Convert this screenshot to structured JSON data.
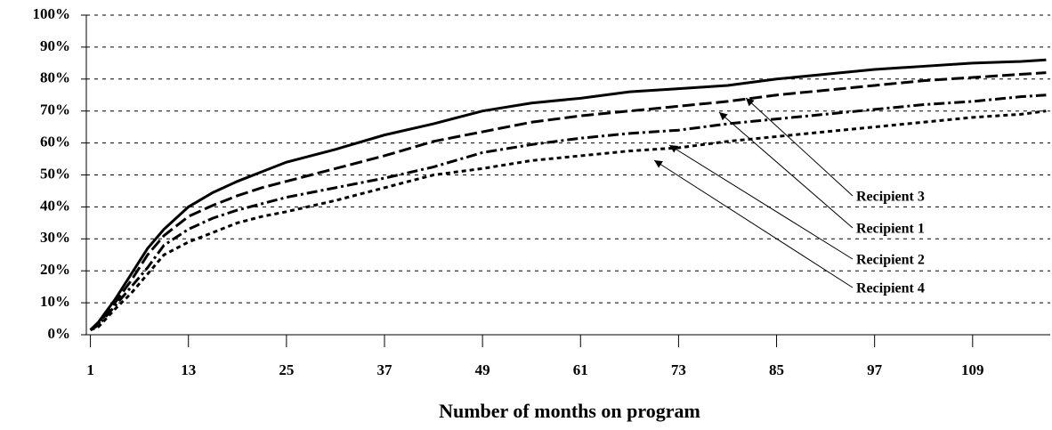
{
  "chart_data": {
    "type": "line",
    "x_label": "Number of months on program",
    "x": [
      1,
      2,
      4,
      6,
      8,
      10,
      13,
      16,
      19,
      22,
      25,
      31,
      37,
      43,
      49,
      55,
      61,
      67,
      73,
      79,
      85,
      91,
      97,
      103,
      109,
      115,
      118
    ],
    "series": [
      {
        "name": "Recipient 3",
        "color": "#000000",
        "style": "solid",
        "values": [
          1.5,
          4,
          11,
          19,
          27,
          33,
          40,
          44.5,
          48,
          51,
          54,
          58,
          62.5,
          66,
          70,
          72.5,
          74,
          76,
          77,
          78,
          80,
          81.5,
          83,
          84,
          85,
          85.5,
          86
        ]
      },
      {
        "name": "Recipient 1",
        "color": "#000000",
        "style": "dashed",
        "values": [
          1.5,
          3.5,
          10,
          17,
          25,
          31,
          37,
          40.5,
          43.5,
          46,
          48,
          52,
          56,
          60.5,
          63.5,
          66.5,
          68.5,
          70,
          71.5,
          73,
          75,
          76.5,
          78,
          79.5,
          80.5,
          81.5,
          82
        ]
      },
      {
        "name": "Recipient 2",
        "color": "#000000",
        "style": "dashdot",
        "values": [
          1.5,
          3,
          9,
          15,
          21,
          28,
          33,
          36.5,
          39,
          41,
          43,
          46,
          49,
          52.5,
          57,
          59.5,
          61.5,
          63,
          64,
          66,
          67.5,
          69,
          70.5,
          72,
          73,
          74.5,
          75
        ]
      },
      {
        "name": "Recipient 4",
        "color": "#000000",
        "style": "dotted",
        "values": [
          1.5,
          2.5,
          8,
          13,
          19,
          25,
          29,
          32,
          35,
          37,
          38.5,
          42,
          46,
          50,
          52,
          54.5,
          56,
          57.5,
          58.5,
          60.5,
          62,
          63.5,
          65,
          66.5,
          68,
          69,
          70
        ]
      }
    ],
    "xlim": [
      0.5,
      118.5
    ],
    "xticks": [
      1,
      13,
      25,
      37,
      49,
      61,
      73,
      85,
      97,
      109
    ],
    "ylim": [
      0,
      100
    ],
    "yticks": [
      {
        "value": 0,
        "label": "0%"
      },
      {
        "value": 10,
        "label": "10%"
      },
      {
        "value": 20,
        "label": "20%"
      },
      {
        "value": 30,
        "label": "30%"
      },
      {
        "value": 40,
        "label": "40%"
      },
      {
        "value": 50,
        "label": "50%"
      },
      {
        "value": 60,
        "label": "60%"
      },
      {
        "value": 70,
        "label": "70%"
      },
      {
        "value": 80,
        "label": "80%"
      },
      {
        "value": 90,
        "label": "90%"
      },
      {
        "value": 100,
        "label": "100%"
      }
    ],
    "grid": true
  }
}
